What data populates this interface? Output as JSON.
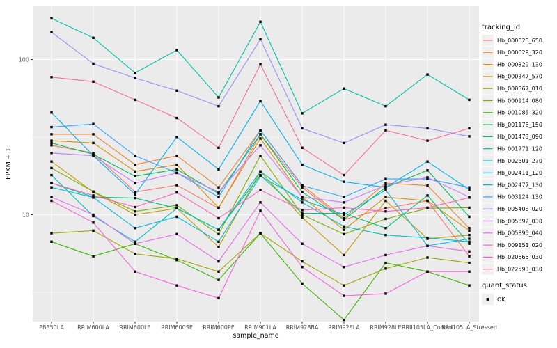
{
  "figure": {
    "background": "#FFFFFF",
    "panel_bg": "#EBEBEB",
    "grid_color": "#FFFFFF",
    "tick_label_color": "#4D4D4D",
    "axis_title_color": "#000000",
    "point_color": "#000000"
  },
  "axes": {
    "x": {
      "title": "sample_name"
    },
    "y": {
      "title": "FPKM + 1",
      "tick_labels": [
        "100",
        "10"
      ],
      "tick_values": [
        100,
        10
      ],
      "scale": "log10"
    }
  },
  "legend": {
    "tracking": {
      "title": "tracking_id"
    },
    "quant": {
      "title": "quant_status",
      "items": [
        {
          "label": "OK",
          "symbol": "black-square"
        }
      ]
    }
  },
  "chart_data": {
    "type": "line",
    "title": "",
    "xlabel": "sample_name",
    "ylabel": "FPKM + 1",
    "y_scale": "log10",
    "ylim": [
      2,
      230
    ],
    "grid": true,
    "legend_position": "right",
    "point_shape": "filled-square",
    "categories": [
      "PB350LA",
      "RRIM600LA",
      "RRIM600LE",
      "RRIM600SE",
      "RRIM600PE",
      "RRIM901LA",
      "RRIM928BA",
      "RRIM928LA",
      "RRIM928LE",
      "RRII105LA_Control",
      "RRII105LA_Stressed"
    ],
    "series": [
      {
        "name": "Hb_000025_650",
        "color": "#F8766D",
        "values": [
          28,
          25,
          14,
          15.5,
          11,
          33,
          15,
          9.3,
          11,
          12.3,
          5.4
        ]
      },
      {
        "name": "Hb_000029_320",
        "color": "#EA8331",
        "values": [
          33,
          33,
          21,
          24,
          15,
          35,
          15.5,
          9.5,
          16,
          15.4,
          8.2
        ]
      },
      {
        "name": "Hb_000329_130",
        "color": "#D89000",
        "values": [
          30,
          29,
          19,
          21,
          11.1,
          31,
          13,
          8,
          13,
          12.3,
          7.9
        ]
      },
      {
        "name": "Hb_000347_570",
        "color": "#C09B00",
        "values": [
          22,
          14,
          10,
          11,
          6.2,
          19,
          9.6,
          5.5,
          12.3,
          7,
          7.4
        ]
      },
      {
        "name": "Hb_000567_010",
        "color": "#A3A500",
        "values": [
          7.6,
          7.9,
          5.6,
          5.2,
          4.3,
          7.6,
          5,
          3.5,
          4.5,
          5.3,
          4.9
        ]
      },
      {
        "name": "Hb_000914_080",
        "color": "#7CAE00",
        "values": [
          20,
          14.1,
          10.5,
          11.5,
          7.5,
          24,
          10,
          7.5,
          9.4,
          11,
          11.1
        ]
      },
      {
        "name": "Hb_001085_320",
        "color": "#39B600",
        "values": [
          6.7,
          5.4,
          6.5,
          5.1,
          3.8,
          7.6,
          3.6,
          2.1,
          4.9,
          4.3,
          3.5
        ]
      },
      {
        "name": "Hb_001178_150",
        "color": "#00BB4E",
        "values": [
          29,
          24.5,
          17.7,
          19.6,
          13.7,
          33,
          14,
          9.3,
          15,
          19.3,
          9.7
        ]
      },
      {
        "name": "Hb_001473_090",
        "color": "#00BF7D",
        "values": [
          16,
          13,
          12.8,
          11,
          8,
          18,
          10.2,
          10.2,
          8.2,
          13.3,
          6.5
        ]
      },
      {
        "name": "Hb_001771_120",
        "color": "#00C1A3",
        "values": [
          184,
          138,
          82,
          115,
          57,
          175,
          45,
          65,
          50,
          80,
          55
        ]
      },
      {
        "name": "Hb_002301_270",
        "color": "#00BFC4",
        "values": [
          18,
          9.8,
          6.7,
          11,
          8,
          19,
          12,
          8.4,
          7.4,
          7.1,
          6.7
        ]
      },
      {
        "name": "Hb_002411_120",
        "color": "#00BAE0",
        "values": [
          15,
          12.9,
          8.2,
          9.7,
          6.7,
          17.7,
          12.5,
          10,
          14.4,
          6.3,
          7
        ]
      },
      {
        "name": "Hb_002477_130",
        "color": "#00B0F6",
        "values": [
          45.5,
          24,
          13.5,
          31.7,
          19.6,
          54,
          21,
          16.3,
          15,
          22,
          14.5
        ]
      },
      {
        "name": "Hb_003124_130",
        "color": "#35A2FF",
        "values": [
          36.7,
          38.4,
          24,
          18.6,
          13,
          35,
          15.4,
          13,
          17,
          17,
          15
        ]
      },
      {
        "name": "Hb_005408_020",
        "color": "#9590FF",
        "values": [
          150,
          94,
          76,
          63,
          50,
          135,
          36,
          29,
          38,
          36,
          32
        ]
      },
      {
        "name": "Hb_005892_030",
        "color": "#C77CFF",
        "values": [
          25,
          24,
          16,
          18.6,
          14,
          28,
          13,
          12,
          15.5,
          17.4,
          13
        ]
      },
      {
        "name": "Hb_005895_040",
        "color": "#E76BF3",
        "values": [
          13,
          10,
          6.5,
          7.5,
          5.0,
          12,
          6.5,
          4.6,
          5.5,
          6.3,
          5.8
        ]
      },
      {
        "name": "Hb_009151_020",
        "color": "#FA62DB",
        "values": [
          12.3,
          8.9,
          4.3,
          3.5,
          2.9,
          10.6,
          4.6,
          3.0,
          3.1,
          4.3,
          4.3
        ]
      },
      {
        "name": "Hb_020665_030",
        "color": "#FF62BC",
        "values": [
          16,
          13.3,
          11.2,
          13.9,
          9.5,
          14.4,
          10.7,
          11.1,
          10.5,
          11.1,
          12.9
        ]
      },
      {
        "name": "Hb_022593_030",
        "color": "#FF6A98",
        "values": [
          77,
          72,
          55,
          42,
          27,
          93,
          27,
          18,
          35,
          30,
          36
        ]
      }
    ]
  }
}
